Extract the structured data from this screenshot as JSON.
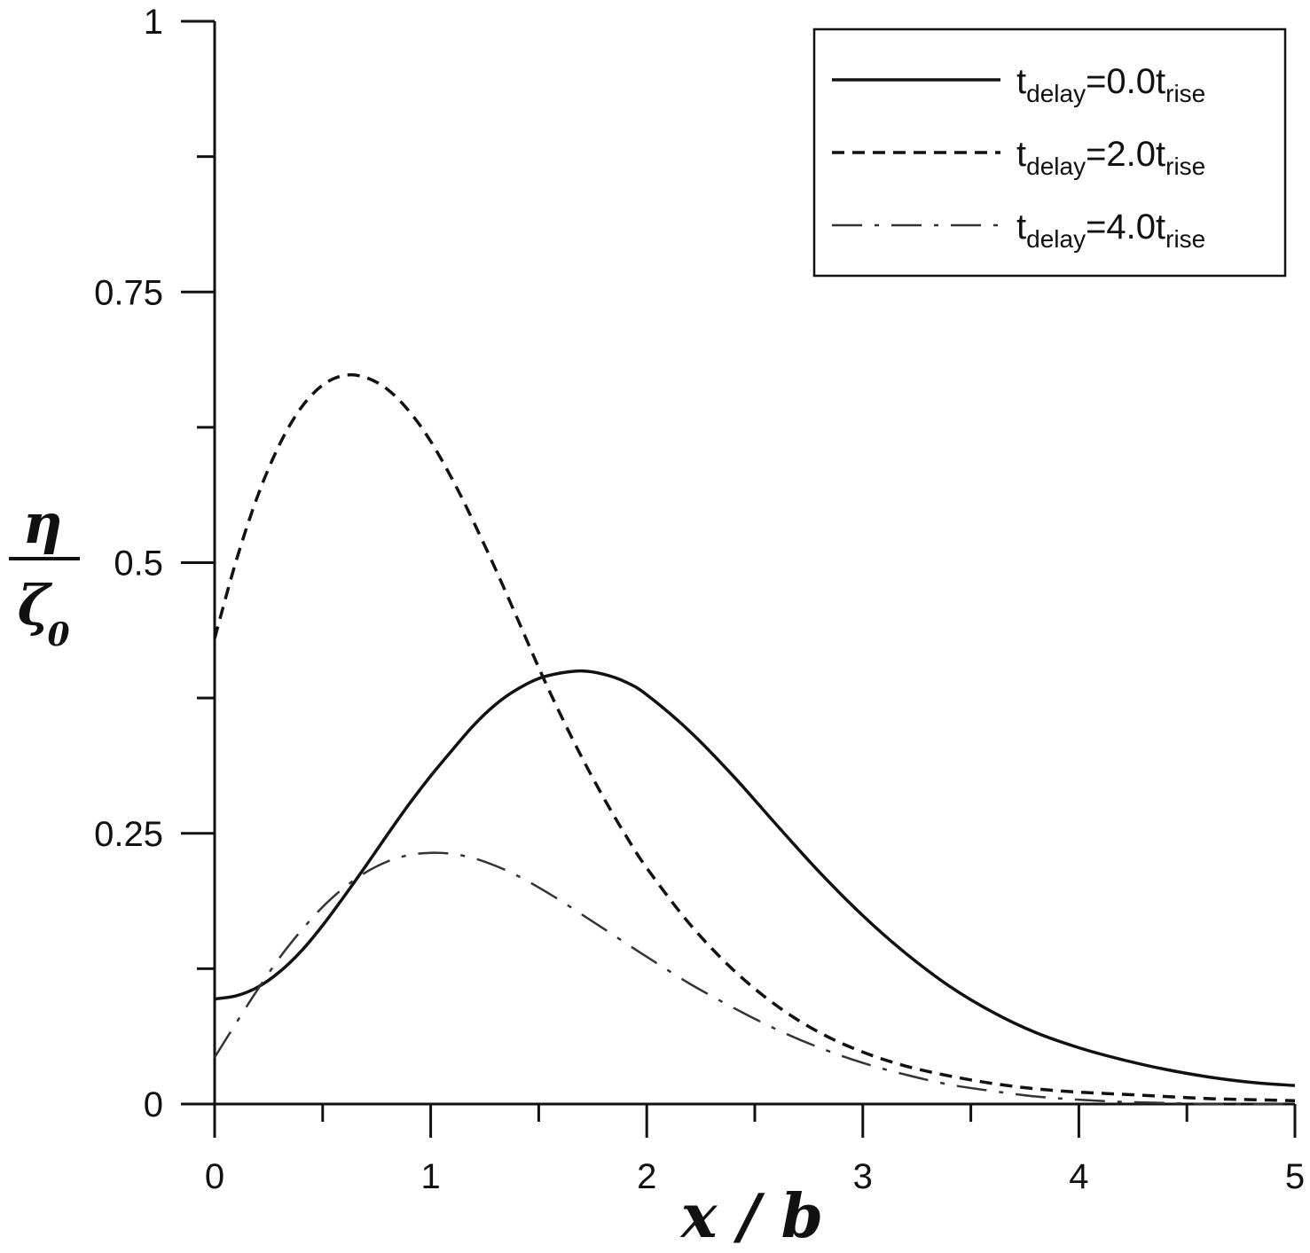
{
  "chart_data": {
    "type": "line",
    "xlabel": "x / b",
    "ylabel": {
      "numerator": "η",
      "denominator": "ζ",
      "denominator_subscript": "0"
    },
    "xlim": [
      0,
      5
    ],
    "ylim": [
      0,
      1
    ],
    "x_ticks": [
      "0",
      "1",
      "2",
      "3",
      "4",
      "5"
    ],
    "y_ticks": [
      "0",
      "0.25",
      "0.5",
      "0.75",
      "1"
    ],
    "grid": false,
    "legend_position": "top-right",
    "series": [
      {
        "name": "t_delay=0.0t_rise",
        "legend": {
          "t": "t",
          "sub1": "delay",
          "eq": "=0.0t",
          "sub2": "rise"
        },
        "style": "solid",
        "color": "#111111",
        "x": [
          0,
          0.1,
          0.2,
          0.3,
          0.4,
          0.5,
          0.6,
          0.7,
          0.8,
          0.9,
          1.0,
          1.1,
          1.2,
          1.3,
          1.4,
          1.5,
          1.6,
          1.7,
          1.8,
          1.9,
          2.0,
          2.2,
          2.4,
          2.6,
          2.8,
          3.0,
          3.2,
          3.4,
          3.6,
          3.8,
          4.0,
          4.2,
          4.4,
          4.6,
          4.8,
          5.0
        ],
        "y": [
          0.097,
          0.1,
          0.108,
          0.122,
          0.141,
          0.165,
          0.192,
          0.22,
          0.249,
          0.277,
          0.303,
          0.327,
          0.35,
          0.369,
          0.383,
          0.393,
          0.398,
          0.4,
          0.397,
          0.39,
          0.378,
          0.344,
          0.303,
          0.258,
          0.214,
          0.174,
          0.139,
          0.109,
          0.085,
          0.066,
          0.052,
          0.041,
          0.032,
          0.025,
          0.02,
          0.017
        ]
      },
      {
        "name": "t_delay=2.0t_rise",
        "legend": {
          "t": "t",
          "sub1": "delay",
          "eq": "=2.0t",
          "sub2": "rise"
        },
        "style": "dashed",
        "color": "#111111",
        "x": [
          0,
          0.1,
          0.2,
          0.3,
          0.4,
          0.5,
          0.6,
          0.7,
          0.8,
          0.9,
          1.0,
          1.1,
          1.2,
          1.3,
          1.4,
          1.5,
          1.6,
          1.7,
          1.8,
          1.9,
          2.0,
          2.2,
          2.4,
          2.6,
          2.8,
          3.0,
          3.2,
          3.4,
          3.6,
          3.8,
          4.0,
          4.2,
          4.4,
          4.6,
          4.8,
          5.0
        ],
        "y": [
          0.43,
          0.502,
          0.562,
          0.609,
          0.643,
          0.664,
          0.673,
          0.671,
          0.66,
          0.64,
          0.612,
          0.577,
          0.537,
          0.494,
          0.449,
          0.403,
          0.36,
          0.32,
          0.283,
          0.249,
          0.218,
          0.166,
          0.124,
          0.091,
          0.066,
          0.048,
          0.035,
          0.026,
          0.019,
          0.014,
          0.011,
          0.009,
          0.007,
          0.005,
          0.004,
          0.003
        ]
      },
      {
        "name": "t_delay=4.0t_rise",
        "legend": {
          "t": "t",
          "sub1": "delay",
          "eq": "=4.0t",
          "sub2": "rise"
        },
        "style": "dashdot",
        "color": "#333333",
        "x": [
          0,
          0.1,
          0.2,
          0.3,
          0.4,
          0.5,
          0.6,
          0.7,
          0.8,
          0.9,
          1.0,
          1.1,
          1.2,
          1.3,
          1.4,
          1.5,
          1.6,
          1.7,
          1.8,
          1.9,
          2.0,
          2.2,
          2.4,
          2.6,
          2.8,
          3.0,
          3.2,
          3.4,
          3.6,
          3.8,
          4.0,
          4.2,
          4.4,
          4.6,
          4.8,
          5.0
        ],
        "y": [
          0.043,
          0.075,
          0.106,
          0.135,
          0.16,
          0.182,
          0.2,
          0.214,
          0.224,
          0.23,
          0.232,
          0.231,
          0.227,
          0.22,
          0.211,
          0.2,
          0.188,
          0.175,
          0.162,
          0.149,
          0.136,
          0.111,
          0.089,
          0.069,
          0.052,
          0.038,
          0.027,
          0.018,
          0.012,
          0.007,
          0.004,
          0.002,
          0.001,
          0.0,
          0.0,
          0.0
        ]
      }
    ]
  }
}
